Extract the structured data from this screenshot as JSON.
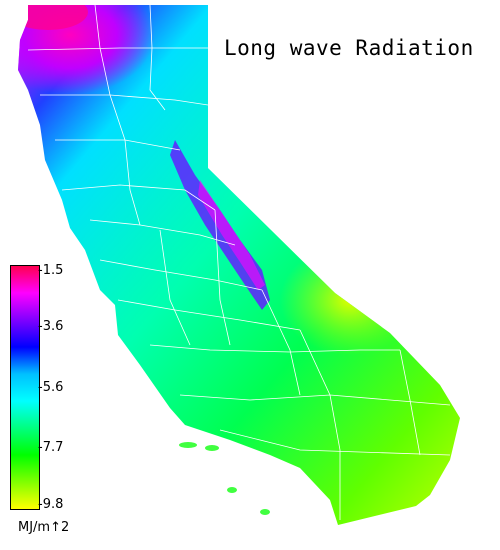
{
  "title": "Long wave Radiation",
  "legend": {
    "ticks": [
      "-1.5",
      "-3.6",
      "-5.6",
      "-7.7",
      "-9.8"
    ],
    "units": "MJ/m↑2",
    "colors": [
      "#ff0050",
      "#ff00ff",
      "#8000ff",
      "#0000ff",
      "#00c0ff",
      "#00ffff",
      "#00ff80",
      "#00ff00",
      "#80ff00",
      "#ffff00"
    ]
  },
  "colors": {
    "background": "#ffffff",
    "border_lines": "#ffffff",
    "state_fill_main": "#00ff80",
    "north_coast": "#ff00ff",
    "sierra": "#8000ff",
    "desert": "#b0ff00"
  }
}
